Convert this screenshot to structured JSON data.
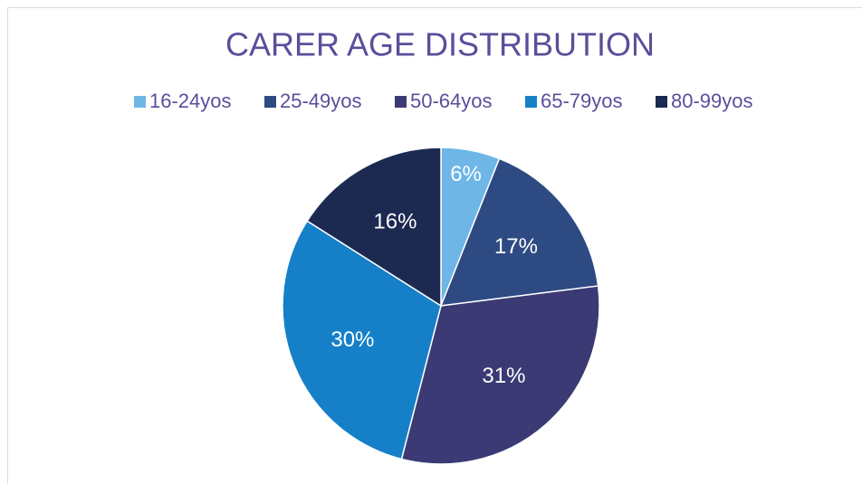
{
  "chart_data": {
    "type": "pie",
    "title": "CARER AGE DISTRIBUTION",
    "categories": [
      "16-24yos",
      "25-49yos",
      "50-64yos",
      "65-79yos",
      "80-99yos"
    ],
    "values": [
      6,
      17,
      31,
      30,
      16
    ],
    "value_labels": [
      "6%",
      "17%",
      "31%",
      "30%",
      "16%"
    ],
    "colors": [
      "#6db6e6",
      "#2e4a82",
      "#3b3a74",
      "#1580c8",
      "#1c2a52"
    ],
    "legend": "top"
  }
}
